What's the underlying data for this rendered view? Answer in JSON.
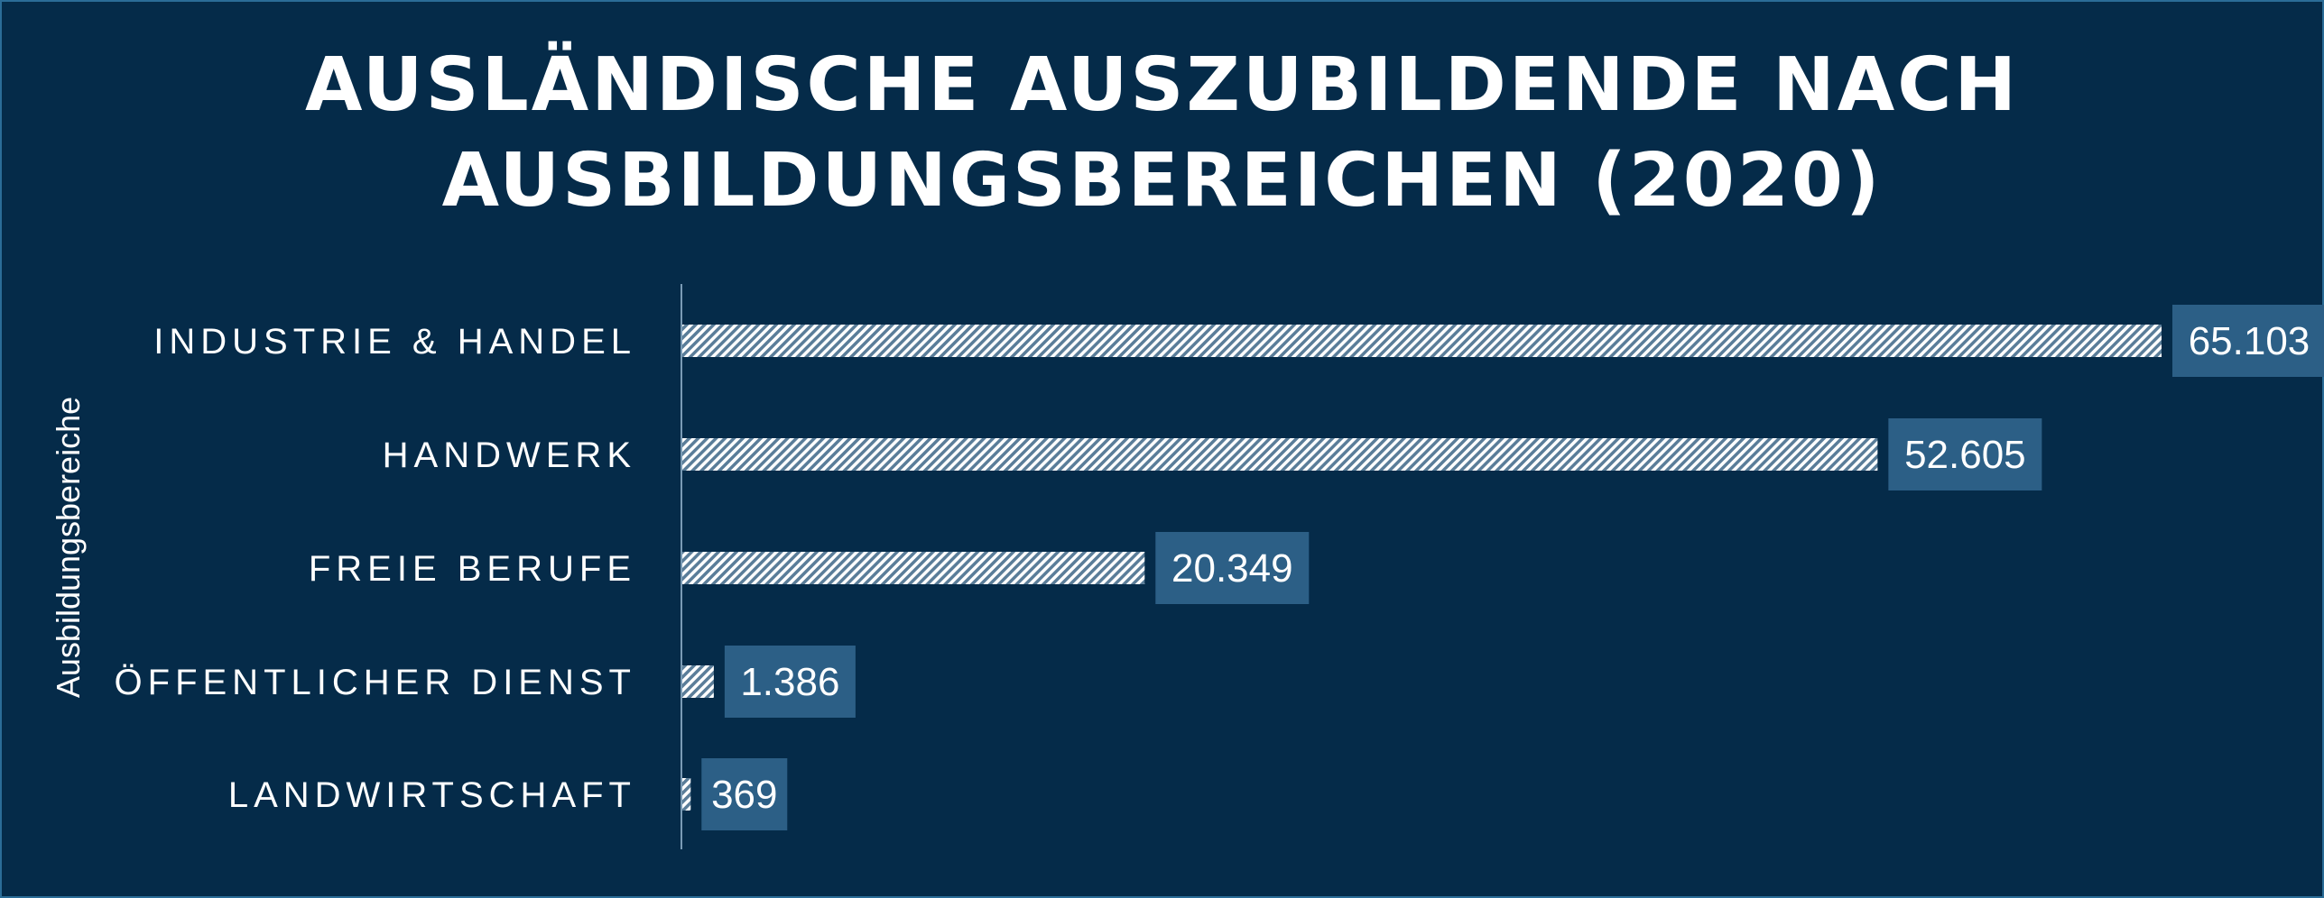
{
  "title_lines": [
    "AUSLÄNDISCHE AUSZUBILDENDE NACH",
    "AUSBILDUNGSBEREICHEN (2020)"
  ],
  "colors": {
    "background": "#052b49",
    "bar_stripe": "#5a7d99",
    "bar_base": "#ffffff",
    "label_box": "#2c5f86",
    "text": "#ffffff",
    "axis": "#7a9bb5"
  },
  "chart_data": {
    "type": "bar",
    "orientation": "horizontal",
    "title": "AUSLÄNDISCHE AUSZUBILDENDE NACH AUSBILDUNGSBEREICHEN (2020)",
    "ylabel": "Ausbildungsbereiche",
    "xlabel": "",
    "categories": [
      "INDUSTRIE & HANDEL",
      "HANDWERK",
      "FREIE BERUFE",
      "ÖFFENTLICHER DIENST",
      "LANDWIRTSCHAFT"
    ],
    "values": [
      65103,
      52605,
      20349,
      1386,
      369
    ],
    "data_labels": [
      "65.103",
      "52.605",
      "20.349",
      "1.386",
      "369"
    ],
    "xlim": [
      0,
      65103
    ],
    "grid": false,
    "legend": "none"
  }
}
